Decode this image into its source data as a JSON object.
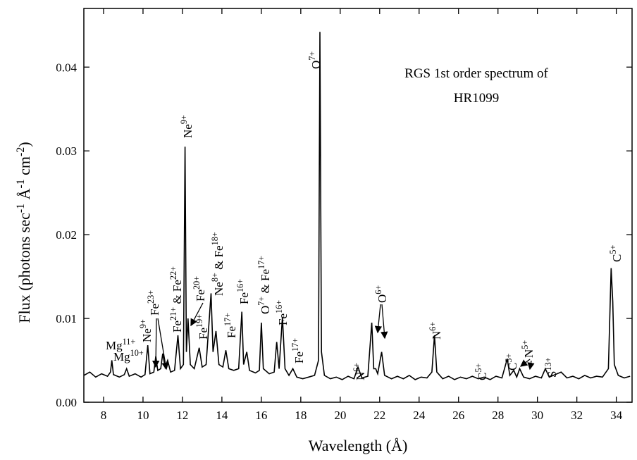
{
  "chart_data": {
    "type": "line",
    "title": [
      "RGS 1st order spectrum of",
      "HR1099"
    ],
    "x_label": [
      "Wavelength (Å)"
    ],
    "y_label": [
      "Flux (photons sec",
      "-1",
      " Å",
      "-1",
      " cm",
      "-2",
      ")"
    ],
    "color": "#000000",
    "x": [
      7.0,
      7.3,
      7.6,
      7.9,
      8.2,
      8.35,
      8.42,
      8.5,
      8.8,
      9.05,
      9.17,
      9.3,
      9.6,
      9.9,
      10.1,
      10.24,
      10.35,
      10.55,
      10.65,
      10.75,
      10.9,
      11.0,
      11.12,
      11.25,
      11.4,
      11.6,
      11.77,
      11.9,
      12.05,
      12.13,
      12.2,
      12.28,
      12.4,
      12.6,
      12.85,
      13.0,
      13.2,
      13.45,
      13.55,
      13.7,
      13.85,
      14.05,
      14.2,
      14.35,
      14.6,
      14.85,
      15.01,
      15.1,
      15.26,
      15.4,
      15.7,
      15.9,
      16.0,
      16.1,
      16.4,
      16.65,
      16.78,
      16.9,
      17.07,
      17.2,
      17.4,
      17.6,
      17.8,
      18.1,
      18.4,
      18.7,
      18.9,
      18.97,
      19.05,
      19.2,
      19.5,
      19.8,
      20.1,
      20.4,
      20.7,
      20.9,
      21.1,
      21.4,
      21.6,
      21.7,
      21.8,
      21.9,
      22.1,
      22.25,
      22.6,
      22.9,
      23.2,
      23.5,
      23.8,
      24.1,
      24.4,
      24.65,
      24.78,
      24.9,
      25.2,
      25.5,
      25.8,
      26.1,
      26.4,
      26.7,
      27.0,
      27.3,
      27.6,
      27.9,
      28.2,
      28.47,
      28.6,
      28.8,
      28.95,
      29.1,
      29.3,
      29.6,
      29.9,
      30.2,
      30.4,
      30.6,
      30.9,
      31.2,
      31.5,
      31.8,
      32.1,
      32.4,
      32.7,
      33.0,
      33.3,
      33.6,
      33.74,
      33.82,
      33.9,
      34.1,
      34.4,
      34.7
    ],
    "values": [
      0.0032,
      0.0036,
      0.003,
      0.0034,
      0.0031,
      0.0036,
      0.005,
      0.0033,
      0.003,
      0.0033,
      0.004,
      0.0031,
      0.0034,
      0.003,
      0.0033,
      0.0068,
      0.0034,
      0.0036,
      0.0055,
      0.0038,
      0.004,
      0.0058,
      0.0042,
      0.005,
      0.0036,
      0.0038,
      0.008,
      0.004,
      0.0045,
      0.0305,
      0.006,
      0.01,
      0.0045,
      0.004,
      0.0065,
      0.0042,
      0.0045,
      0.013,
      0.006,
      0.0085,
      0.0045,
      0.0042,
      0.0062,
      0.004,
      0.0038,
      0.004,
      0.0108,
      0.0045,
      0.006,
      0.0038,
      0.0035,
      0.0038,
      0.0095,
      0.004,
      0.0034,
      0.0036,
      0.0072,
      0.004,
      0.0102,
      0.004,
      0.0032,
      0.004,
      0.003,
      0.0028,
      0.003,
      0.0032,
      0.005,
      0.0442,
      0.006,
      0.0032,
      0.0028,
      0.003,
      0.0027,
      0.0031,
      0.0028,
      0.0042,
      0.0029,
      0.0031,
      0.0095,
      0.004,
      0.004,
      0.0034,
      0.006,
      0.0032,
      0.0028,
      0.0031,
      0.0028,
      0.0032,
      0.0027,
      0.003,
      0.0029,
      0.0036,
      0.008,
      0.0036,
      0.0028,
      0.0031,
      0.0027,
      0.003,
      0.0028,
      0.0031,
      0.0028,
      0.003,
      0.0027,
      0.0031,
      0.0029,
      0.0052,
      0.0032,
      0.0038,
      0.003,
      0.004,
      0.003,
      0.0028,
      0.0031,
      0.0029,
      0.004,
      0.003,
      0.0033,
      0.0036,
      0.0029,
      0.0031,
      0.0028,
      0.0032,
      0.0029,
      0.0031,
      0.003,
      0.004,
      0.016,
      0.012,
      0.0045,
      0.0032,
      0.0029,
      0.0031
    ],
    "xlim": [
      7,
      34.8
    ],
    "ylim": [
      0,
      0.047
    ],
    "xticks": [
      8,
      10,
      12,
      14,
      16,
      18,
      20,
      22,
      24,
      26,
      28,
      30,
      32,
      34
    ],
    "yticks": [
      {
        "value": 0,
        "label": "0.00"
      },
      {
        "value": 0.01,
        "label": "0.01"
      },
      {
        "value": 0.02,
        "label": "0.02"
      },
      {
        "value": 0.03,
        "label": "0.03"
      },
      {
        "value": 0.04,
        "label": "0.04"
      }
    ],
    "annotations": [
      [
        "Mg",
        "11+"
      ],
      [
        "Mg",
        "10+"
      ],
      [
        "Ne",
        "9+"
      ],
      [
        "Fe",
        "23+"
      ],
      [
        "Fe",
        "21+",
        " & Fe",
        "22+"
      ],
      [
        "Ne",
        "9+"
      ],
      [
        "Fe",
        "20+"
      ],
      [
        "Fe",
        "19+"
      ],
      [
        "Ne",
        "8+",
        " & Fe",
        "18+"
      ],
      [
        "Fe",
        "17+"
      ],
      [
        "Fe",
        "16+"
      ],
      [
        "O",
        "7+",
        " & Fe",
        "17+"
      ],
      [
        "Fe",
        "16+"
      ],
      [
        "Fe",
        "17+"
      ],
      [
        "O",
        "7+"
      ],
      [
        "N",
        "6+"
      ],
      [
        "O",
        "6+"
      ],
      [
        "N",
        "6+"
      ],
      [
        "C",
        "5+"
      ],
      [
        "C",
        "5+"
      ],
      [
        "N",
        "5+"
      ],
      [
        "S",
        "13+"
      ],
      [
        "C",
        "5+"
      ]
    ]
  }
}
